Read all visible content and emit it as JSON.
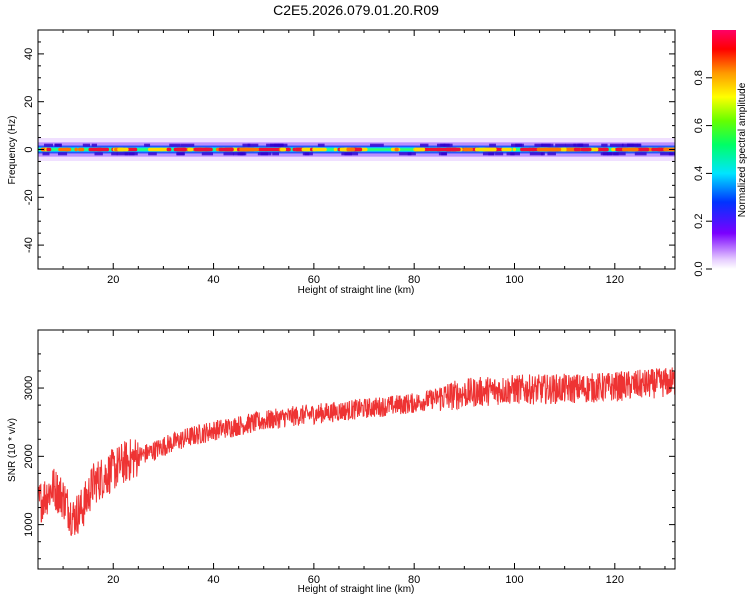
{
  "figure": {
    "title": "C2E5.2026.079.01.20.R09"
  },
  "chart_data": [
    {
      "type": "heatmap",
      "title": "C2E5.2026.079.01.20.R09",
      "xlabel": "Height of straight line (km)",
      "ylabel": "Frequency (Hz)",
      "xlim": [
        5,
        132
      ],
      "ylim": [
        -50,
        50
      ],
      "x_ticks": [
        20,
        40,
        60,
        80,
        100,
        120
      ],
      "y_ticks": [
        40,
        20,
        0,
        -20,
        -40
      ],
      "colorbar": {
        "label": "Normalized spectral amplitude",
        "range": [
          0,
          1
        ],
        "ticks": [
          "0.0",
          "0.2",
          "0.4",
          "0.6",
          "0.8"
        ],
        "colormap": "rainbow (white-violet-blue-cyan-green-yellow-orange-red-magenta)"
      },
      "description_values": {
        "center_frequency_hz": 0,
        "band_halfwidth_hz": 3,
        "peak_amplitude": 0.9
      }
    },
    {
      "type": "line",
      "xlabel": "Height of straight line (km)",
      "ylabel": "SNR (10 * v/v)",
      "xlim": [
        5,
        132
      ],
      "ylim": [
        350,
        3850
      ],
      "x_ticks": [
        20,
        40,
        60,
        80,
        100,
        120
      ],
      "y_ticks": [
        1000,
        2000,
        3000
      ],
      "color": "#ee3333",
      "series": [
        {
          "x": [
            5,
            8,
            10,
            12,
            14,
            16,
            18,
            20,
            22,
            25,
            28,
            30,
            35,
            40,
            45,
            50,
            55,
            60,
            65,
            70,
            75,
            80,
            85,
            90,
            95,
            100,
            105,
            110,
            115,
            120,
            125,
            130,
            132
          ],
          "values": [
            1300,
            1550,
            1400,
            1100,
            1250,
            1600,
            1700,
            1800,
            1900,
            2000,
            2080,
            2150,
            2280,
            2380,
            2450,
            2520,
            2580,
            2620,
            2660,
            2700,
            2740,
            2780,
            2860,
            2920,
            2960,
            2980,
            2980,
            2990,
            3000,
            3020,
            3050,
            3080,
            3100
          ]
        }
      ]
    }
  ]
}
